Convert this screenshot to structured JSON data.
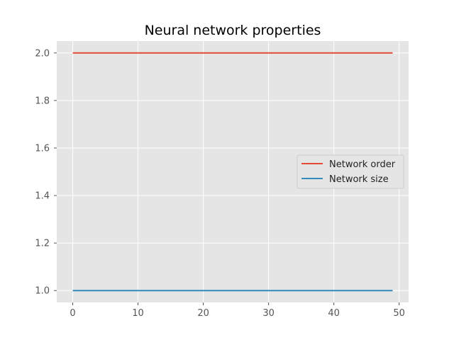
{
  "chart_data": {
    "type": "line",
    "title": "Neural network properties",
    "xlabel": "",
    "ylabel": "",
    "x": {
      "start": 0,
      "end": 49,
      "step": 1
    },
    "xlim": [
      -2.45,
      51.45
    ],
    "ylim": [
      0.95,
      2.05
    ],
    "xticks": [
      0,
      10,
      20,
      30,
      40,
      50
    ],
    "yticks": [
      1.0,
      1.2,
      1.4,
      1.6,
      1.8,
      2.0
    ],
    "xtick_labels": [
      "0",
      "10",
      "20",
      "30",
      "40",
      "50"
    ],
    "ytick_labels": [
      "1.0",
      "1.2",
      "1.4",
      "1.6",
      "1.8",
      "2.0"
    ],
    "grid": true,
    "legend_position": "center-right",
    "series": [
      {
        "name": "Network order",
        "constant": 2.0,
        "color": "#e24a33"
      },
      {
        "name": "Network size",
        "constant": 1.0,
        "color": "#348abd"
      }
    ],
    "colors": {
      "plot_background": "#e5e5e5",
      "grid": "#ffffff",
      "tick_text": "#555555"
    }
  }
}
